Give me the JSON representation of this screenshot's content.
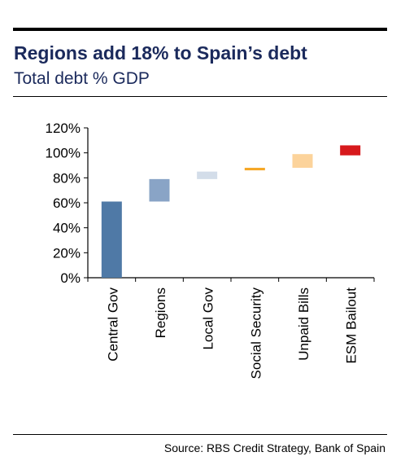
{
  "header": {
    "title": "Regions add 18% to Spain’s debt",
    "subtitle": "Total debt % GDP"
  },
  "footer": {
    "source": "Source:  RBS Credit Strategy, Bank of Spain"
  },
  "chart_data": {
    "type": "bar",
    "subtype": "waterfall",
    "title": "Regions add 18% to Spain’s debt",
    "subtitle": "Total debt % GDP",
    "categories": [
      "Central Gov",
      "Regions",
      "Local Gov",
      "Social Security",
      "Unpaid Bills",
      "ESM Bailout"
    ],
    "bars": [
      {
        "category": "Central Gov",
        "start": 0,
        "end": 61,
        "color": "#4f79a6"
      },
      {
        "category": "Regions",
        "start": 61,
        "end": 79,
        "color": "#89a4c6"
      },
      {
        "category": "Local Gov",
        "start": 79,
        "end": 85,
        "color": "#d3dde9"
      },
      {
        "category": "Social Security",
        "start": 86,
        "end": 88,
        "color": "#f5a623"
      },
      {
        "category": "Unpaid Bills",
        "start": 88,
        "end": 99,
        "color": "#fcd39b"
      },
      {
        "category": "ESM Bailout",
        "start": 98,
        "end": 106,
        "color": "#d7191c"
      }
    ],
    "ylim": [
      0,
      120
    ],
    "yticks": [
      0,
      20,
      40,
      60,
      80,
      100,
      120
    ],
    "ytick_labels": [
      "0%",
      "20%",
      "40%",
      "60%",
      "80%",
      "100%",
      "120%"
    ],
    "grid": false,
    "legend": "none"
  }
}
